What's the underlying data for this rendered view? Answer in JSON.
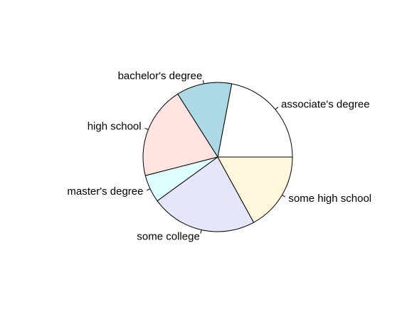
{
  "chart_data": {
    "type": "pie",
    "title": "",
    "labels": [
      "associate's degree",
      "bachelor's degree",
      "high school",
      "master's degree",
      "some college",
      "some high school"
    ],
    "values": [
      22,
      12,
      20,
      6,
      23,
      17
    ],
    "colors": [
      "#ffffff",
      "#add8e6",
      "#ffe4e1",
      "#e0ffff",
      "#e6e6fa",
      "#fff8dc"
    ],
    "start_angle_deg": 0,
    "direction": "counterclockwise"
  }
}
